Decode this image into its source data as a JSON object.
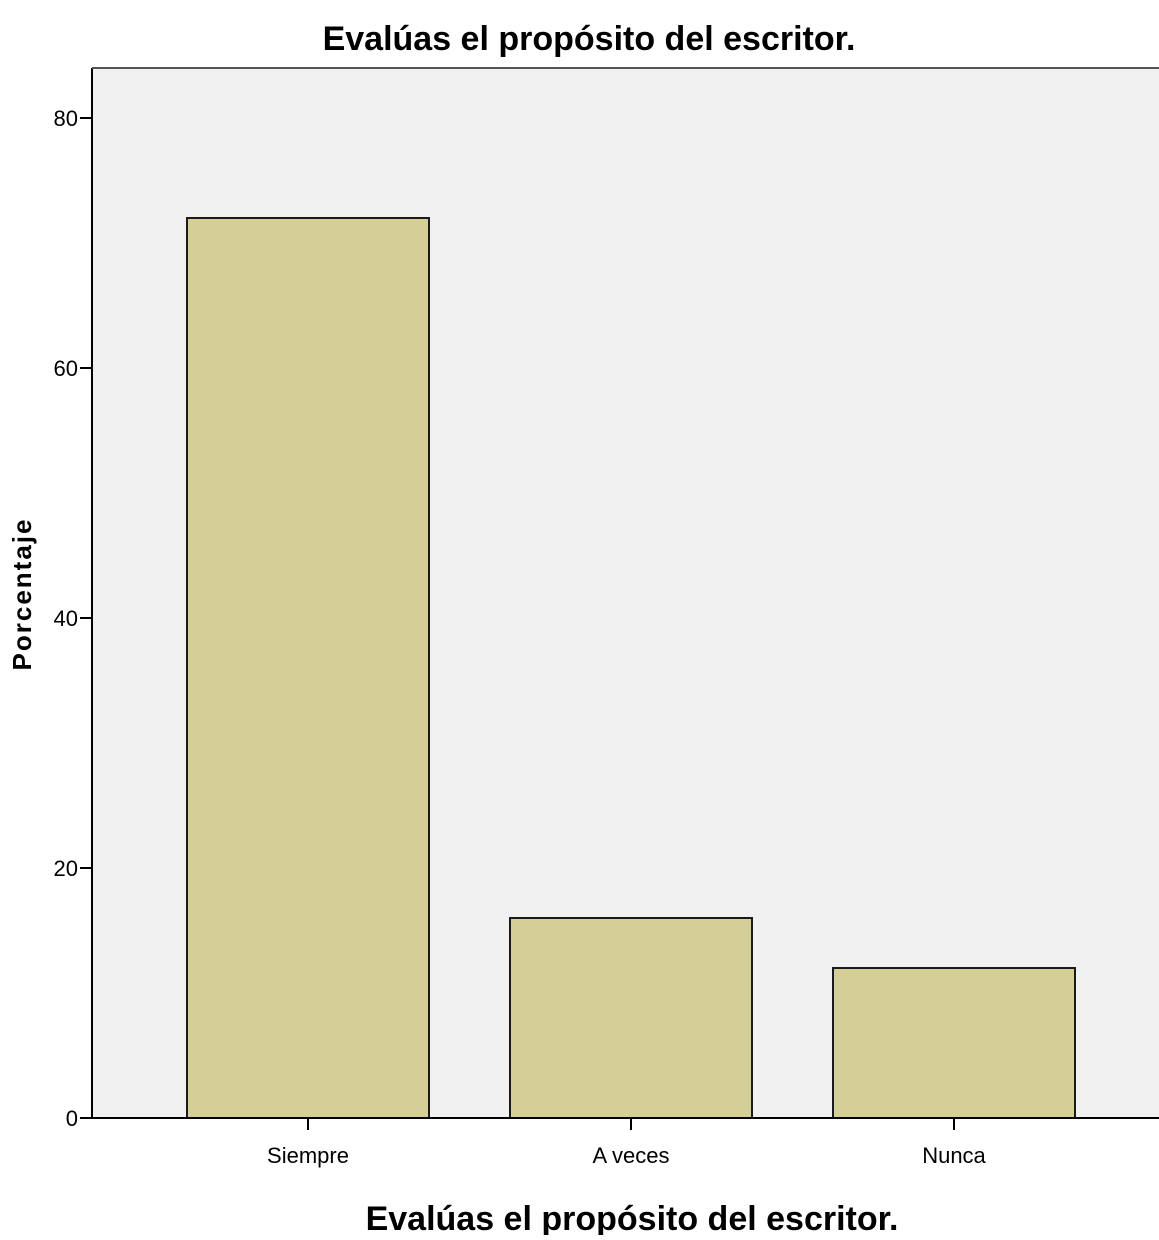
{
  "chart_data": {
    "type": "bar",
    "title": "Evalúas el propósito del escritor.",
    "xlabel": "Evalúas el propósito del escritor.",
    "ylabel": "Porcentaje",
    "categories": [
      "Siempre",
      "A veces",
      "Nunca"
    ],
    "values": [
      72,
      16,
      12
    ],
    "ylim": [
      0,
      84
    ],
    "yticks": [
      0,
      20,
      40,
      60,
      80
    ],
    "grid": false,
    "legend": "none",
    "colors": {
      "bar_fill": "#d3cf97",
      "bar_stroke": "#1a1a1a",
      "plot_background": "#f0f0f0",
      "axis": "#000000"
    }
  }
}
